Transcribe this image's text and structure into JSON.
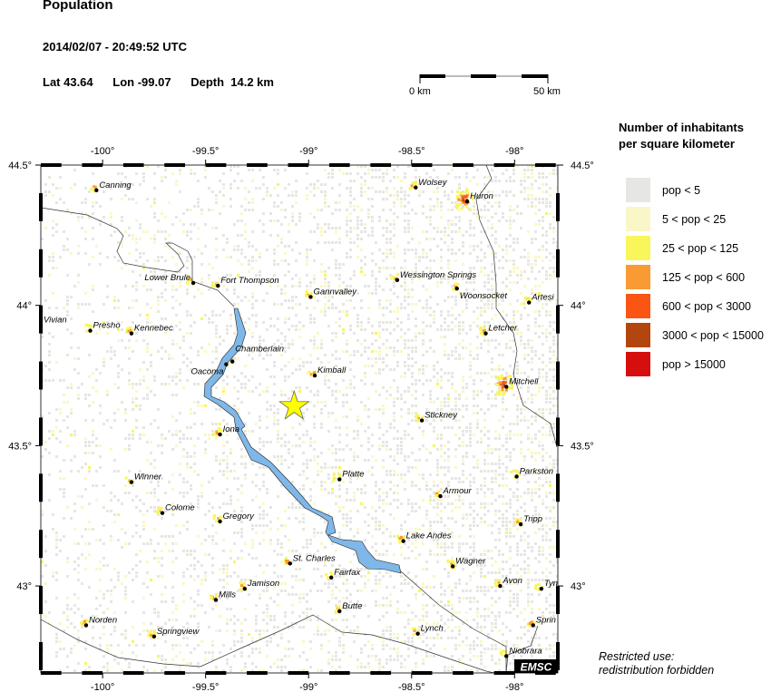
{
  "header": {
    "title": "Population",
    "datetime": "2014/02/07 - 20:49:52 UTC",
    "lat": "Lat 43.64",
    "lon": "Lon -99.07",
    "depth": "Depth  14.2 km"
  },
  "scale_bar": {
    "start_label": "0 km",
    "end_label": "50 km"
  },
  "map": {
    "lon_range": [
      -100.3,
      -97.79
    ],
    "lat_range": [
      42.69,
      44.5
    ],
    "lon_ticks": [
      {
        "value": -100,
        "label": "-100°"
      },
      {
        "value": -99.5,
        "label": "-99.5°"
      },
      {
        "value": -99,
        "label": "-99°"
      },
      {
        "value": -98.5,
        "label": "-98.5°"
      },
      {
        "value": -98,
        "label": "-98°"
      }
    ],
    "lat_ticks": [
      {
        "value": 44.5,
        "label": "44.5°"
      },
      {
        "value": 44,
        "label": "44°"
      },
      {
        "value": 43.5,
        "label": "43.5°"
      },
      {
        "value": 43,
        "label": "43°"
      }
    ],
    "epicenter": {
      "lon": -99.07,
      "lat": 43.64,
      "color": "#ffff00",
      "icon": "star-icon"
    },
    "water_color": "#7fb8e8",
    "cities": [
      {
        "name": "Canning",
        "lon": -100.03,
        "lat": 44.41
      },
      {
        "name": "Wolsey",
        "lon": -98.48,
        "lat": 44.42
      },
      {
        "name": "Huron",
        "lon": -98.23,
        "lat": 44.37
      },
      {
        "name": "Lower Brule",
        "lon": -99.56,
        "lat": 44.08
      },
      {
        "name": "Fort Thompson",
        "lon": -99.44,
        "lat": 44.07
      },
      {
        "name": "Gannvalley",
        "lon": -98.99,
        "lat": 44.03
      },
      {
        "name": "Wessington Springs",
        "lon": -98.57,
        "lat": 44.09
      },
      {
        "name": "Woonsocket",
        "lon": -98.28,
        "lat": 44.06
      },
      {
        "name": "Artesi",
        "lon": -97.93,
        "lat": 44.01
      },
      {
        "name": "Vivian",
        "lon": -100.3,
        "lat": 43.93
      },
      {
        "name": "Presho",
        "lon": -100.06,
        "lat": 43.91
      },
      {
        "name": "Kennebec",
        "lon": -99.86,
        "lat": 43.9
      },
      {
        "name": "Letcher",
        "lon": -98.14,
        "lat": 43.9
      },
      {
        "name": "Chamberlain",
        "lon": -99.37,
        "lat": 43.8
      },
      {
        "name": "Oacoma",
        "lon": -99.4,
        "lat": 43.79
      },
      {
        "name": "Kimball",
        "lon": -98.97,
        "lat": 43.75
      },
      {
        "name": "Mitchell",
        "lon": -98.04,
        "lat": 43.71
      },
      {
        "name": "Stickney",
        "lon": -98.45,
        "lat": 43.59
      },
      {
        "name": "Iona",
        "lon": -99.43,
        "lat": 43.54
      },
      {
        "name": "Winner",
        "lon": -99.86,
        "lat": 43.37
      },
      {
        "name": "Platte",
        "lon": -98.85,
        "lat": 43.38
      },
      {
        "name": "Parkston",
        "lon": -97.99,
        "lat": 43.39
      },
      {
        "name": "Armour",
        "lon": -98.36,
        "lat": 43.32
      },
      {
        "name": "Colome",
        "lon": -99.71,
        "lat": 43.26
      },
      {
        "name": "Gregory",
        "lon": -99.43,
        "lat": 43.23
      },
      {
        "name": "Tripp",
        "lon": -97.97,
        "lat": 43.22
      },
      {
        "name": "Lake Andes",
        "lon": -98.54,
        "lat": 43.16
      },
      {
        "name": "Wagner",
        "lon": -98.3,
        "lat": 43.07
      },
      {
        "name": "St. Charles",
        "lon": -99.09,
        "lat": 43.08
      },
      {
        "name": "Fairfax",
        "lon": -98.89,
        "lat": 43.03
      },
      {
        "name": "Jamison",
        "lon": -99.31,
        "lat": 42.99
      },
      {
        "name": "Avon",
        "lon": -98.07,
        "lat": 43.0
      },
      {
        "name": "Tyn",
        "lon": -97.87,
        "lat": 42.99
      },
      {
        "name": "Mills",
        "lon": -99.45,
        "lat": 42.95
      },
      {
        "name": "Butte",
        "lon": -98.85,
        "lat": 42.91
      },
      {
        "name": "Norden",
        "lon": -100.08,
        "lat": 42.86
      },
      {
        "name": "Sprin",
        "lon": -97.91,
        "lat": 42.86
      },
      {
        "name": "Springview",
        "lon": -99.75,
        "lat": 42.82
      },
      {
        "name": "Lynch",
        "lon": -98.47,
        "lat": 42.83
      },
      {
        "name": "Niobrara",
        "lon": -98.04,
        "lat": 42.75
      }
    ],
    "logo": "EMSC"
  },
  "legend": {
    "title_line1": "Number of inhabitants",
    "title_line2": "per square kilometer",
    "items": [
      {
        "label": "pop < 5",
        "color": "#e6e6e4"
      },
      {
        "label": "5 < pop < 25",
        "color": "#f9f7c8"
      },
      {
        "label": "25 < pop < 125",
        "color": "#f8f65a"
      },
      {
        "label": "125 < pop < 600",
        "color": "#f99a32"
      },
      {
        "label": "600 < pop < 3000",
        "color": "#fb5514"
      },
      {
        "label": "3000 < pop < 15000",
        "color": "#b3460f"
      },
      {
        "label": "pop > 15000",
        "color": "#d60e0e"
      }
    ]
  },
  "note": {
    "line1": "Restricted use:",
    "line2": "redistribution forbidden"
  }
}
